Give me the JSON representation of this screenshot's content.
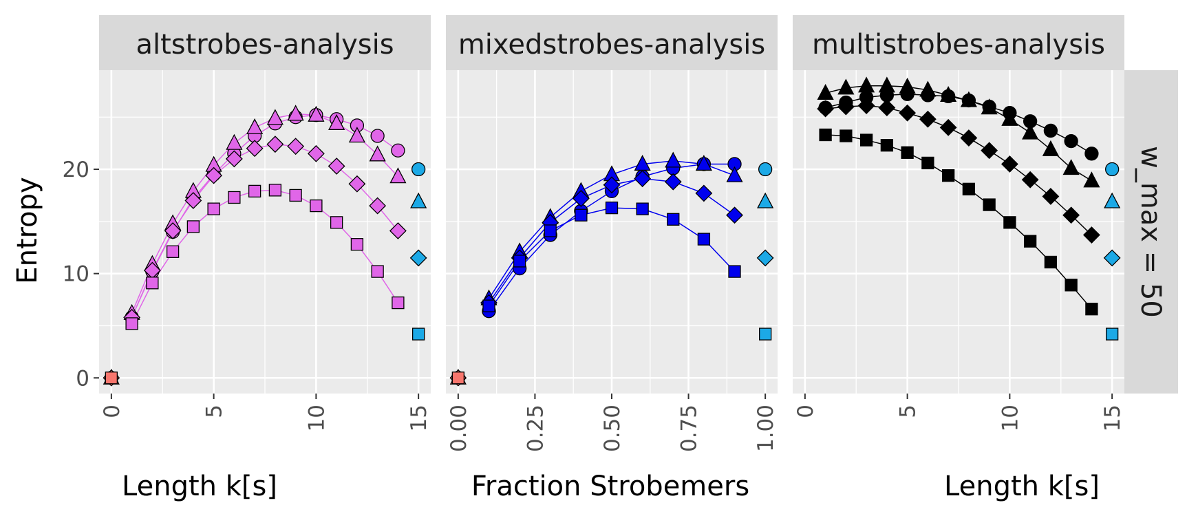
{
  "ylabel": "Entropy",
  "facet_row_label": "w_max = 50",
  "colors": {
    "altstrobes": "#E066E8",
    "mixedstrobes": "#0000EE",
    "multistrobes": "#000000",
    "randstrobes_ref": "#1CA9E6",
    "kmer_ref": "#F8766D",
    "panel_bg": "#EBEBEB",
    "strip_bg": "#D9D9D9"
  },
  "shapes": [
    "circle",
    "triangle",
    "diamond",
    "square"
  ],
  "chart_data": [
    {
      "type": "line",
      "facet": "altstrobes-analysis",
      "xlabel": "Length k[s]",
      "xlim": [
        -0.6,
        15.6
      ],
      "ylim": [
        -1.5,
        29.5
      ],
      "xticks": [
        0,
        5,
        10,
        15
      ],
      "xtick_labels": [
        "0",
        "5",
        "10",
        "15"
      ],
      "yticks": [
        0,
        10,
        20
      ],
      "series": [
        {
          "shape": "circle",
          "x": [
            1,
            2,
            3,
            4,
            5,
            6,
            7,
            8,
            9,
            10,
            11,
            12,
            13,
            14
          ],
          "y": [
            5.8,
            10.2,
            14.0,
            17.2,
            19.5,
            21.5,
            23.2,
            24.4,
            25.0,
            25.2,
            24.8,
            24.2,
            23.2,
            21.8
          ]
        },
        {
          "shape": "triangle",
          "x": [
            1,
            2,
            3,
            4,
            5,
            6,
            7,
            8,
            9,
            10,
            11,
            12,
            13,
            14
          ],
          "y": [
            6.2,
            10.9,
            14.8,
            17.9,
            20.4,
            22.5,
            24.0,
            24.9,
            25.3,
            25.2,
            24.4,
            23.2,
            21.4,
            19.3
          ]
        },
        {
          "shape": "diamond",
          "x": [
            1,
            2,
            3,
            4,
            5,
            6,
            7,
            8,
            9,
            10,
            11,
            12,
            13,
            14
          ],
          "y": [
            5.8,
            10.3,
            14.1,
            17.0,
            19.4,
            21.0,
            22.0,
            22.4,
            22.2,
            21.5,
            20.3,
            18.6,
            16.5,
            14.1
          ]
        },
        {
          "shape": "square",
          "x": [
            1,
            2,
            3,
            4,
            5,
            6,
            7,
            8,
            9,
            10,
            11,
            12,
            13,
            14
          ],
          "y": [
            5.2,
            9.1,
            12.1,
            14.5,
            16.2,
            17.3,
            17.9,
            18.0,
            17.5,
            16.5,
            14.9,
            12.8,
            10.2,
            7.2
          ]
        }
      ],
      "reference_points": [
        {
          "shape": "circle",
          "x": 15,
          "y": 20.0,
          "color_key": "randstrobes_ref"
        },
        {
          "shape": "triangle",
          "x": 15,
          "y": 16.9,
          "color_key": "randstrobes_ref"
        },
        {
          "shape": "diamond",
          "x": 15,
          "y": 11.5,
          "color_key": "randstrobes_ref"
        },
        {
          "shape": "square",
          "x": 15,
          "y": 4.2,
          "color_key": "randstrobes_ref"
        },
        {
          "shape": "circle",
          "x": 0,
          "y": 0,
          "color_key": "kmer_ref"
        },
        {
          "shape": "triangle",
          "x": 0,
          "y": 0,
          "color_key": "kmer_ref"
        },
        {
          "shape": "diamond",
          "x": 0,
          "y": 0,
          "color_key": "kmer_ref"
        },
        {
          "shape": "square",
          "x": 0,
          "y": 0,
          "color_key": "kmer_ref"
        }
      ]
    },
    {
      "type": "line",
      "facet": "mixedstrobes-analysis",
      "xlabel": "Fraction Strobemers",
      "xlim": [
        -0.04,
        1.04
      ],
      "ylim": [
        -1.5,
        29.5
      ],
      "xticks": [
        0,
        0.25,
        0.5,
        0.75,
        1.0
      ],
      "xtick_labels": [
        "0.00",
        "0.25",
        "0.50",
        "0.75",
        "1.00"
      ],
      "yticks": [
        0,
        10,
        20
      ],
      "series": [
        {
          "shape": "circle",
          "x": [
            0.1,
            0.2,
            0.3,
            0.4,
            0.5,
            0.6,
            0.7,
            0.8,
            0.9
          ],
          "y": [
            6.4,
            10.5,
            13.7,
            16.0,
            17.9,
            19.3,
            20.1,
            20.5,
            20.5
          ]
        },
        {
          "shape": "triangle",
          "x": [
            0.1,
            0.2,
            0.3,
            0.4,
            0.5,
            0.6,
            0.7,
            0.8,
            0.9
          ],
          "y": [
            7.6,
            12.1,
            15.4,
            17.9,
            19.5,
            20.5,
            20.8,
            20.5,
            19.4
          ]
        },
        {
          "shape": "diamond",
          "x": [
            0.1,
            0.2,
            0.3,
            0.4,
            0.5,
            0.6,
            0.7,
            0.8,
            0.9
          ],
          "y": [
            7.2,
            11.5,
            14.9,
            17.2,
            18.5,
            19.1,
            18.8,
            17.7,
            15.6
          ]
        },
        {
          "shape": "square",
          "x": [
            0.1,
            0.2,
            0.3,
            0.4,
            0.5,
            0.6,
            0.7,
            0.8,
            0.9
          ],
          "y": [
            6.9,
            11.2,
            14.1,
            15.6,
            16.3,
            16.2,
            15.2,
            13.3,
            10.2
          ]
        }
      ],
      "reference_points": [
        {
          "shape": "circle",
          "x": 1.0,
          "y": 20.0,
          "color_key": "randstrobes_ref"
        },
        {
          "shape": "triangle",
          "x": 1.0,
          "y": 16.9,
          "color_key": "randstrobes_ref"
        },
        {
          "shape": "diamond",
          "x": 1.0,
          "y": 11.5,
          "color_key": "randstrobes_ref"
        },
        {
          "shape": "square",
          "x": 1.0,
          "y": 4.2,
          "color_key": "randstrobes_ref"
        },
        {
          "shape": "circle",
          "x": 0,
          "y": 0,
          "color_key": "kmer_ref"
        },
        {
          "shape": "triangle",
          "x": 0,
          "y": 0,
          "color_key": "kmer_ref"
        },
        {
          "shape": "diamond",
          "x": 0,
          "y": 0,
          "color_key": "kmer_ref"
        },
        {
          "shape": "square",
          "x": 0,
          "y": 0,
          "color_key": "kmer_ref"
        }
      ]
    },
    {
      "type": "line",
      "facet": "multistrobes-analysis",
      "xlabel": "Length k[s]",
      "xlim": [
        -0.6,
        15.6
      ],
      "ylim": [
        -1.5,
        29.5
      ],
      "xticks": [
        0,
        5,
        10,
        15
      ],
      "xtick_labels": [
        "0",
        "5",
        "10",
        "15"
      ],
      "yticks": [
        0,
        10,
        20
      ],
      "series": [
        {
          "shape": "circle",
          "x": [
            1,
            2,
            3,
            4,
            5,
            6,
            7,
            8,
            9,
            10,
            11,
            12,
            13,
            14
          ],
          "y": [
            25.9,
            26.4,
            26.9,
            27.1,
            27.2,
            27.1,
            27.0,
            26.6,
            26.0,
            25.4,
            24.6,
            23.7,
            22.7,
            21.5
          ]
        },
        {
          "shape": "triangle",
          "x": [
            1,
            2,
            3,
            4,
            5,
            6,
            7,
            8,
            9,
            10,
            11,
            12,
            13,
            14
          ],
          "y": [
            27.3,
            27.8,
            28.0,
            28.0,
            27.9,
            27.6,
            27.1,
            26.6,
            25.9,
            24.8,
            23.5,
            21.9,
            20.1,
            18.9
          ]
        },
        {
          "shape": "diamond",
          "x": [
            1,
            2,
            3,
            4,
            5,
            6,
            7,
            8,
            9,
            10,
            11,
            12,
            13,
            14
          ],
          "y": [
            25.8,
            26.0,
            26.1,
            25.9,
            25.4,
            24.8,
            24.0,
            23.0,
            21.8,
            20.5,
            19.0,
            17.4,
            15.6,
            13.7
          ]
        },
        {
          "shape": "square",
          "x": [
            1,
            2,
            3,
            4,
            5,
            6,
            7,
            8,
            9,
            10,
            11,
            12,
            13,
            14
          ],
          "y": [
            23.3,
            23.2,
            22.8,
            22.3,
            21.6,
            20.6,
            19.4,
            18.1,
            16.6,
            14.9,
            13.1,
            11.1,
            8.9,
            6.6
          ]
        }
      ],
      "reference_points": [
        {
          "shape": "circle",
          "x": 15,
          "y": 20.0,
          "color_key": "randstrobes_ref"
        },
        {
          "shape": "triangle",
          "x": 15,
          "y": 16.9,
          "color_key": "randstrobes_ref"
        },
        {
          "shape": "diamond",
          "x": 15,
          "y": 11.5,
          "color_key": "randstrobes_ref"
        },
        {
          "shape": "square",
          "x": 15,
          "y": 4.2,
          "color_key": "randstrobes_ref"
        }
      ]
    }
  ]
}
